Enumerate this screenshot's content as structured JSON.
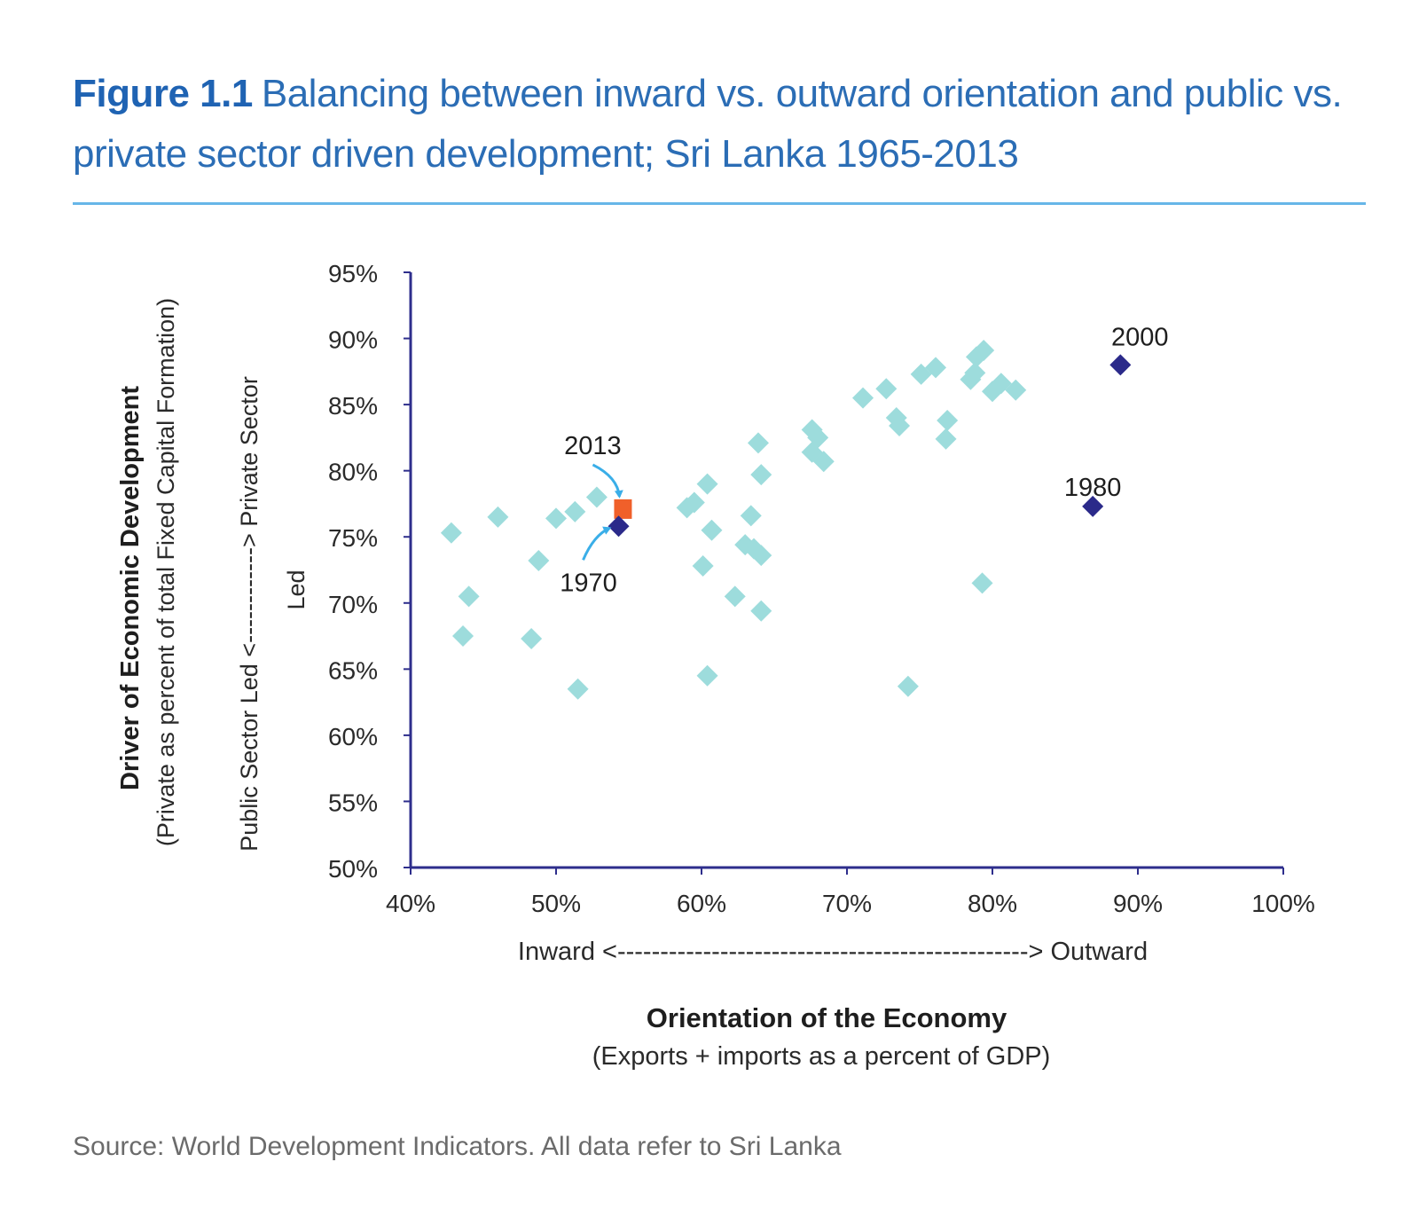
{
  "figure": {
    "label": "Figure 1.1",
    "caption": "Balancing between inward vs. outward orientation and public vs. private sector driven development; Sri Lanka 1965-2013"
  },
  "source": "Source: World Development Indicators. All data refer to Sri Lanka",
  "colors": {
    "title": "#2b6db5",
    "rule": "#67b6e8",
    "axis": "#2e2e8c",
    "other_years": "#9ddcdc",
    "highlight_years": "#2b2a8a",
    "year_2013": "#f0602a",
    "arrow": "#3aaee8"
  },
  "chart_data": {
    "type": "scatter",
    "x_axis": {
      "range": [
        40,
        100
      ],
      "ticks": [
        40,
        50,
        60,
        70,
        80,
        90,
        100
      ],
      "tick_labels": [
        "40%",
        "50%",
        "60%",
        "70%",
        "80%",
        "90%",
        "100%"
      ],
      "direction_label": "Inward <------------------------------------------------> Outward",
      "title": "Orientation of the Economy",
      "subtitle": "(Exports + imports as a  percent of GDP)"
    },
    "y_axis": {
      "range": [
        50,
        95
      ],
      "ticks": [
        50,
        55,
        60,
        65,
        70,
        75,
        80,
        85,
        90,
        95
      ],
      "tick_labels": [
        "50%",
        "55%",
        "60%",
        "65%",
        "70%",
        "75%",
        "80%",
        "85%",
        "90%",
        "95%"
      ],
      "title": "Driver of Economic Development",
      "subtitle": "(Private as  percent of  total Fixed Capital Formation)",
      "direction_label_line1": "Public Sector Led <------------> Private Sector",
      "direction_label_line2": "Led"
    },
    "grid": false,
    "points": [
      {
        "x": 42.8,
        "y": 75.3
      },
      {
        "x": 43.6,
        "y": 67.5
      },
      {
        "x": 44.0,
        "y": 70.5
      },
      {
        "x": 46.0,
        "y": 76.5
      },
      {
        "x": 48.3,
        "y": 67.3
      },
      {
        "x": 48.8,
        "y": 73.2
      },
      {
        "x": 50.0,
        "y": 76.4
      },
      {
        "x": 51.3,
        "y": 76.9
      },
      {
        "x": 51.5,
        "y": 63.5
      },
      {
        "x": 52.8,
        "y": 78.0
      },
      {
        "x": 59.0,
        "y": 77.2
      },
      {
        "x": 59.5,
        "y": 77.6
      },
      {
        "x": 60.1,
        "y": 72.8
      },
      {
        "x": 60.4,
        "y": 79.0
      },
      {
        "x": 60.4,
        "y": 64.5
      },
      {
        "x": 60.7,
        "y": 75.5
      },
      {
        "x": 62.3,
        "y": 70.5
      },
      {
        "x": 63.0,
        "y": 74.4
      },
      {
        "x": 63.4,
        "y": 76.6
      },
      {
        "x": 63.6,
        "y": 74.1
      },
      {
        "x": 63.9,
        "y": 82.1
      },
      {
        "x": 64.1,
        "y": 79.7
      },
      {
        "x": 64.1,
        "y": 73.6
      },
      {
        "x": 64.1,
        "y": 69.4
      },
      {
        "x": 67.6,
        "y": 81.4
      },
      {
        "x": 67.6,
        "y": 83.1
      },
      {
        "x": 68.0,
        "y": 82.5
      },
      {
        "x": 68.4,
        "y": 80.7
      },
      {
        "x": 71.1,
        "y": 85.5
      },
      {
        "x": 72.7,
        "y": 86.2
      },
      {
        "x": 73.4,
        "y": 84.0
      },
      {
        "x": 73.6,
        "y": 83.4
      },
      {
        "x": 74.2,
        "y": 63.7
      },
      {
        "x": 75.1,
        "y": 87.3
      },
      {
        "x": 76.1,
        "y": 87.8
      },
      {
        "x": 76.8,
        "y": 82.4
      },
      {
        "x": 76.9,
        "y": 83.8
      },
      {
        "x": 78.5,
        "y": 86.9
      },
      {
        "x": 78.8,
        "y": 87.4
      },
      {
        "x": 78.9,
        "y": 88.6
      },
      {
        "x": 79.3,
        "y": 71.5
      },
      {
        "x": 79.4,
        "y": 89.1
      },
      {
        "x": 80.0,
        "y": 86.0
      },
      {
        "x": 80.6,
        "y": 86.6
      },
      {
        "x": 81.6,
        "y": 86.1
      }
    ],
    "highlighted": [
      {
        "label": "1970",
        "x": 54.3,
        "y": 75.8
      },
      {
        "label": "1980",
        "x": 86.9,
        "y": 77.3
      },
      {
        "label": "2000",
        "x": 88.8,
        "y": 88.0
      }
    ],
    "latest": {
      "label": "2013",
      "x": 54.6,
      "y": 77.1
    }
  }
}
